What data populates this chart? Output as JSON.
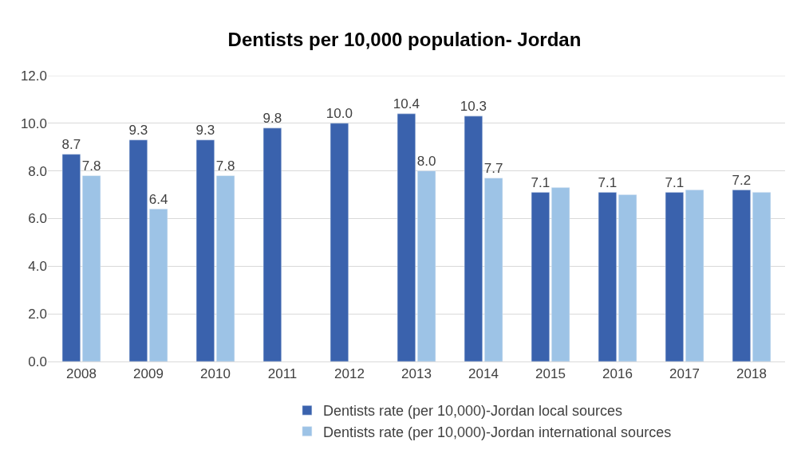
{
  "chart_data": {
    "type": "bar",
    "title": "Dentists per 10,000 population- Jordan",
    "categories": [
      "2008",
      "2009",
      "2010",
      "2011",
      "2012",
      "2013",
      "2014",
      "2015",
      "2016",
      "2017",
      "2018"
    ],
    "series": [
      {
        "name": "Dentists rate (per 10,000)-Jordan local sources",
        "color": "#3a62ad",
        "values": [
          8.7,
          9.3,
          9.3,
          9.8,
          10.0,
          10.4,
          10.3,
          7.1,
          7.1,
          7.1,
          7.2
        ],
        "value_labels": [
          "8.7",
          "9.3",
          "9.3",
          "9.8",
          "10.0",
          "10.4",
          "10.3",
          "7.1",
          "7.1",
          "7.1",
          "7.2"
        ]
      },
      {
        "name": "Dentists rate (per 10,000)-Jordan international sources",
        "color": "#9dc3e6",
        "values": [
          7.8,
          6.4,
          7.8,
          null,
          null,
          8.0,
          7.7,
          7.3,
          7.0,
          7.2,
          7.1
        ],
        "value_labels": [
          "7.8",
          "6.4",
          "7.8",
          null,
          null,
          "8.0",
          "7.7",
          null,
          null,
          null,
          null
        ]
      }
    ],
    "ylim": [
      0,
      12
    ],
    "yticks": [
      "0.0",
      "2.0",
      "4.0",
      "6.0",
      "8.0",
      "10.0",
      "12.0"
    ],
    "grid": "y",
    "legend": "bottom"
  }
}
